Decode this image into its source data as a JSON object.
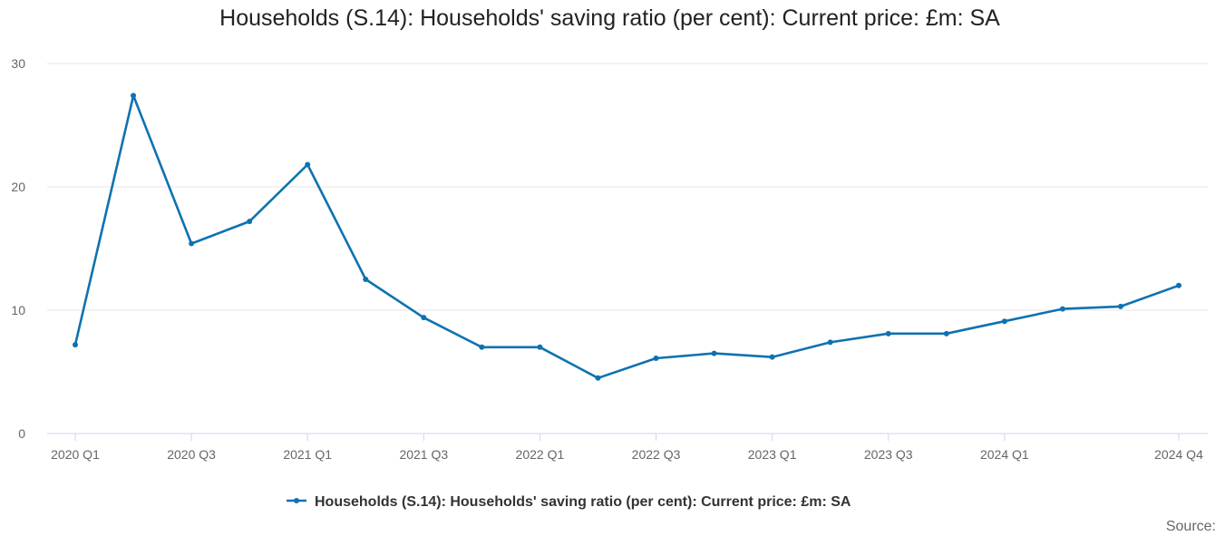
{
  "colors": {
    "series": "#0f72b0",
    "grid": "#e6e6e6",
    "axis": "#ccd6eb"
  },
  "chart_data": {
    "type": "line",
    "title": "Households (S.14): Households' saving ratio (per cent): Current price: £m: SA",
    "xlabel": "",
    "ylabel": "",
    "ylim": [
      0,
      30
    ],
    "yticks": [
      0,
      10,
      20,
      30
    ],
    "x": [
      "2020 Q1",
      "2020 Q2",
      "2020 Q3",
      "2020 Q4",
      "2021 Q1",
      "2021 Q2",
      "2021 Q3",
      "2021 Q4",
      "2022 Q1",
      "2022 Q2",
      "2022 Q3",
      "2022 Q4",
      "2023 Q1",
      "2023 Q2",
      "2023 Q3",
      "2023 Q4",
      "2024 Q1",
      "2024 Q2",
      "2024 Q3",
      "2024 Q4"
    ],
    "xtick_labels": [
      "2020 Q1",
      "2020 Q3",
      "2021 Q1",
      "2021 Q3",
      "2022 Q1",
      "2022 Q3",
      "2023 Q1",
      "2023 Q3",
      "2024 Q1",
      "2024 Q4"
    ],
    "grid": true,
    "legend_position": "bottom-center",
    "series": [
      {
        "name": "Households (S.14): Households' saving ratio (per cent): Current price: £m: SA",
        "values": [
          7.2,
          27.4,
          15.4,
          17.2,
          21.8,
          12.5,
          9.4,
          7.0,
          7.0,
          4.5,
          6.1,
          6.5,
          6.2,
          7.4,
          8.1,
          8.1,
          9.1,
          10.1,
          10.3,
          12.0
        ]
      }
    ]
  },
  "footer": {
    "source_label": "Source:"
  }
}
